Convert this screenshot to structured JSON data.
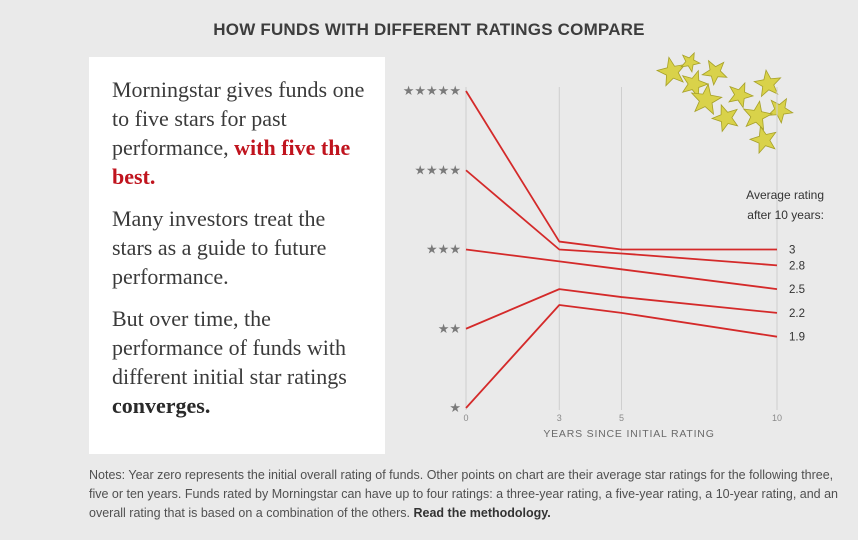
{
  "title": "HOW FUNDS WITH DIFFERENT RATINGS COMPARE",
  "textbox": {
    "p1_a": "Morningstar gives funds one to five stars for past performance, ",
    "p1_highlight": "with five the best.",
    "p2": "Many investors treat the stars as a guide to future performance.",
    "p3_a": "But over time, the performance of funds with different initial star ratings ",
    "p3_bold": "converges."
  },
  "notes": {
    "text": "Notes: Year zero represents the initial overall rating of funds. Other points on chart are their average star ratings for the following three, five or ten years. Funds rated by Morningstar can have up to four ratings: a three-year rating, a five-year rating, a 10-year rating, and an overall rating that is based on a combination of the others. ",
    "link": "Read the methodology."
  },
  "colors": {
    "line": "#d42a2a",
    "grid": "#cfcfcf",
    "stars": "#7a7a7a"
  },
  "chart_data": {
    "type": "line",
    "x": [
      0,
      3,
      5,
      10
    ],
    "xticks": [
      "0",
      "3",
      "5",
      "10"
    ],
    "xlabel": "YEARS SINCE INITIAL RATING",
    "ylabel": "",
    "xlim": [
      0,
      10
    ],
    "ylim": [
      1,
      5
    ],
    "ytick_values": [
      1,
      2,
      3,
      4,
      5
    ],
    "ytick_labels": [
      "★",
      "★★",
      "★★★",
      "★★★★",
      "★★★★★"
    ],
    "end_note": [
      "Average rating",
      "after 10 years:"
    ],
    "series": [
      {
        "values": [
          5,
          3.1,
          3.0,
          3.0
        ],
        "end_label": "3"
      },
      {
        "values": [
          4,
          3.0,
          2.95,
          2.8
        ],
        "end_label": "2.8"
      },
      {
        "values": [
          3,
          2.85,
          2.75,
          2.5
        ],
        "end_label": "2.5"
      },
      {
        "values": [
          2,
          2.5,
          2.4,
          2.2
        ],
        "end_label": "2.2"
      },
      {
        "values": [
          1,
          2.3,
          2.2,
          1.9
        ],
        "end_label": "1.9"
      }
    ]
  }
}
